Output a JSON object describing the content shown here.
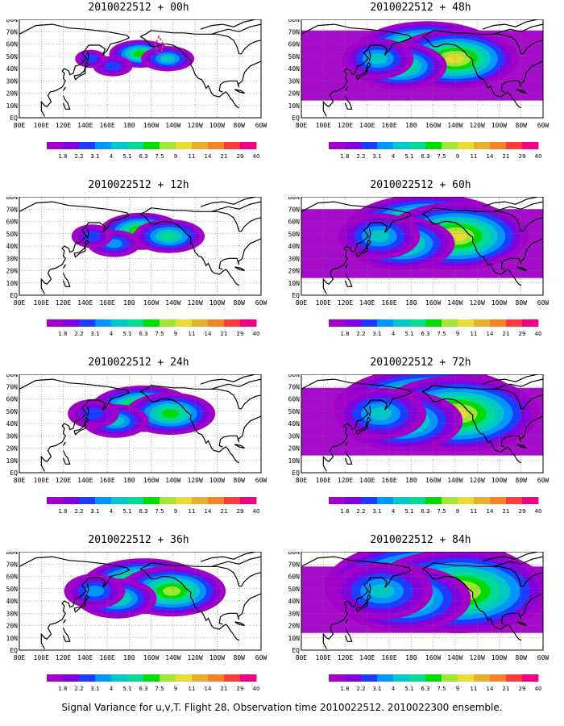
{
  "lon_labels": [
    "80E",
    "100E",
    "120E",
    "140E",
    "160E",
    "180",
    "160W",
    "140W",
    "120W",
    "100W",
    "80W",
    "60W"
  ],
  "lat_labels": [
    "80N",
    "70N",
    "60N",
    "50N",
    "40N",
    "30N",
    "20N",
    "10N",
    "EQ"
  ],
  "colorbar": {
    "levels": [
      "1.8",
      "2.2",
      "3.1",
      "4",
      "5.1",
      "6.3",
      "7.5",
      "9",
      "11",
      "14",
      "21",
      "29",
      "40"
    ],
    "colors": [
      "#a000c8",
      "#8200dc",
      "#1e3cff",
      "#0096ff",
      "#00c8c8",
      "#00dc96",
      "#00dc00",
      "#a0e632",
      "#e6dc32",
      "#e6af2d",
      "#f08228",
      "#fa3c3c",
      "#f00082"
    ]
  },
  "panels": [
    {
      "title": "2010022512 + 00h",
      "level": 1
    },
    {
      "title": "2010022512 + 48h",
      "level": 5
    },
    {
      "title": "2010022512 + 12h",
      "level": 2
    },
    {
      "title": "2010022512 + 60h",
      "level": 6
    },
    {
      "title": "2010022512 + 24h",
      "level": 3
    },
    {
      "title": "2010022512 + 72h",
      "level": 7
    },
    {
      "title": "2010022512 + 36h",
      "level": 4
    },
    {
      "title": "2010022512 + 84h",
      "level": 8
    }
  ],
  "caption": "Signal Variance for u,v,T. Flight 28. Observation time 2010022512. 2010022300 ensemble."
}
